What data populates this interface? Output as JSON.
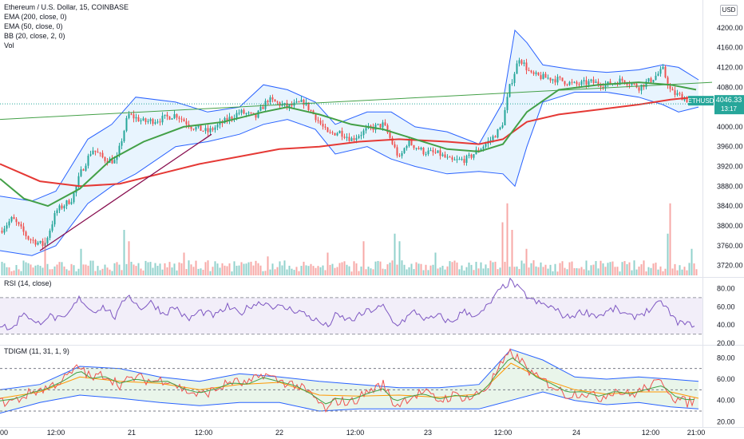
{
  "legend": {
    "title": "Ethereum / U.S. Dollar, 15, COINBASE",
    "ema200": "EMA (200, close, 0)",
    "ema50": "EMA (50, close, 0)",
    "bb": "BB (20, close, 2, 0)",
    "vol": "Vol"
  },
  "price_tag": {
    "symbol": "ETHUSD",
    "price": "4046.33",
    "countdown": "13:17",
    "color": "#26a69a"
  },
  "currency_button": "USD",
  "rsi_title": "RSI (14, close)",
  "tdigm_title": "TDIGM (11, 31, 1, 9)",
  "colors": {
    "up": "#26a69a",
    "down": "#ef5350",
    "ema200": "#e53935",
    "ema50": "#43a047",
    "bb": "#2962ff",
    "rsi": "#7e57c2",
    "trendline": "#43a047",
    "support": "#880e4f"
  },
  "chart_data": [
    {
      "type": "candlestick",
      "pane": "price",
      "ylim": [
        3700,
        4240
      ],
      "y_ticks": [
        "4200.00",
        "4160.00",
        "4120.00",
        "4080.00",
        "4040.00",
        "4000.00",
        "3960.00",
        "3920.00",
        "3880.00",
        "3840.00",
        "3800.00",
        "3760.00",
        "3720.00"
      ],
      "x_ticks": [
        "00",
        "12:00",
        "21",
        "12:00",
        "22",
        "12:00",
        "23",
        "12:00",
        "24",
        "12:00",
        "21:00"
      ],
      "close_path": [
        [
          0,
          3790
        ],
        [
          15,
          3815
        ],
        [
          35,
          3775
        ],
        [
          55,
          3760
        ],
        [
          70,
          3830
        ],
        [
          90,
          3855
        ],
        [
          100,
          3905
        ],
        [
          115,
          3955
        ],
        [
          130,
          3935
        ],
        [
          145,
          3930
        ],
        [
          160,
          4025
        ],
        [
          180,
          4010
        ],
        [
          200,
          4015
        ],
        [
          220,
          4025
        ],
        [
          240,
          4000
        ],
        [
          260,
          3990
        ],
        [
          280,
          4010
        ],
        [
          300,
          4030
        ],
        [
          320,
          4020
        ],
        [
          335,
          4055
        ],
        [
          360,
          4040
        ],
        [
          380,
          4050
        ],
        [
          395,
          4020
        ],
        [
          410,
          3985
        ],
        [
          425,
          3990
        ],
        [
          440,
          3975
        ],
        [
          460,
          3995
        ],
        [
          480,
          4005
        ],
        [
          500,
          3935
        ],
        [
          510,
          3970
        ],
        [
          530,
          3950
        ],
        [
          550,
          3945
        ],
        [
          565,
          3930
        ],
        [
          585,
          3935
        ],
        [
          600,
          3955
        ],
        [
          615,
          3975
        ],
        [
          628,
          4000
        ],
        [
          638,
          4080
        ],
        [
          650,
          4140
        ],
        [
          665,
          4105
        ],
        [
          680,
          4100
        ],
        [
          700,
          4095
        ],
        [
          720,
          4085
        ],
        [
          740,
          4090
        ],
        [
          760,
          4085
        ],
        [
          780,
          4095
        ],
        [
          800,
          4080
        ],
        [
          815,
          4095
        ],
        [
          830,
          4115
        ],
        [
          840,
          4070
        ],
        [
          855,
          4060
        ],
        [
          868,
          4046
        ]
      ],
      "ema200_path": [
        [
          0,
          3925
        ],
        [
          50,
          3890
        ],
        [
          100,
          3880
        ],
        [
          150,
          3885
        ],
        [
          200,
          3905
        ],
        [
          250,
          3925
        ],
        [
          300,
          3940
        ],
        [
          350,
          3955
        ],
        [
          400,
          3960
        ],
        [
          450,
          3970
        ],
        [
          500,
          3975
        ],
        [
          560,
          3970
        ],
        [
          600,
          3965
        ],
        [
          630,
          3975
        ],
        [
          660,
          4010
        ],
        [
          700,
          4025
        ],
        [
          750,
          4035
        ],
        [
          800,
          4045
        ],
        [
          840,
          4055
        ],
        [
          870,
          4060
        ]
      ],
      "ema50_path": [
        [
          0,
          3895
        ],
        [
          30,
          3855
        ],
        [
          60,
          3840
        ],
        [
          100,
          3875
        ],
        [
          140,
          3935
        ],
        [
          180,
          3970
        ],
        [
          230,
          4000
        ],
        [
          280,
          4010
        ],
        [
          330,
          4030
        ],
        [
          360,
          4040
        ],
        [
          400,
          4025
        ],
        [
          440,
          4005
        ],
        [
          480,
          3995
        ],
        [
          520,
          3975
        ],
        [
          560,
          3955
        ],
        [
          600,
          3950
        ],
        [
          630,
          3965
        ],
        [
          660,
          4030
        ],
        [
          700,
          4075
        ],
        [
          750,
          4085
        ],
        [
          800,
          4090
        ],
        [
          840,
          4085
        ],
        [
          872,
          4075
        ]
      ],
      "bb_upper_path": [
        [
          0,
          3860
        ],
        [
          40,
          3850
        ],
        [
          70,
          3870
        ],
        [
          110,
          3975
        ],
        [
          140,
          4005
        ],
        [
          170,
          4060
        ],
        [
          220,
          4050
        ],
        [
          260,
          4030
        ],
        [
          300,
          4040
        ],
        [
          330,
          4085
        ],
        [
          360,
          4075
        ],
        [
          395,
          4050
        ],
        [
          420,
          4005
        ],
        [
          460,
          4030
        ],
        [
          490,
          4030
        ],
        [
          520,
          4000
        ],
        [
          560,
          3990
        ],
        [
          600,
          3965
        ],
        [
          630,
          4050
        ],
        [
          645,
          4195
        ],
        [
          660,
          4170
        ],
        [
          680,
          4125
        ],
        [
          720,
          4115
        ],
        [
          760,
          4110
        ],
        [
          800,
          4115
        ],
        [
          830,
          4125
        ],
        [
          850,
          4120
        ],
        [
          875,
          4095
        ]
      ],
      "bb_lower_path": [
        [
          0,
          3750
        ],
        [
          40,
          3740
        ],
        [
          70,
          3760
        ],
        [
          110,
          3845
        ],
        [
          140,
          3880
        ],
        [
          170,
          3905
        ],
        [
          220,
          3960
        ],
        [
          260,
          3970
        ],
        [
          300,
          3985
        ],
        [
          330,
          4005
        ],
        [
          360,
          4015
        ],
        [
          395,
          3995
        ],
        [
          420,
          3945
        ],
        [
          460,
          3960
        ],
        [
          490,
          3935
        ],
        [
          520,
          3920
        ],
        [
          560,
          3905
        ],
        [
          600,
          3910
        ],
        [
          630,
          3905
        ],
        [
          645,
          3880
        ],
        [
          660,
          3960
        ],
        [
          680,
          4050
        ],
        [
          720,
          4070
        ],
        [
          760,
          4070
        ],
        [
          800,
          4060
        ],
        [
          830,
          4045
        ],
        [
          850,
          4030
        ],
        [
          875,
          4040
        ]
      ],
      "trendline": [
        [
          0,
          4015
        ],
        [
          892,
          4090
        ]
      ],
      "support_line": [
        [
          50,
          3750
        ],
        [
          265,
          3985
        ]
      ],
      "last_price_dotted": 4046.33
    },
    {
      "type": "bar",
      "pane": "volume",
      "note": "relative volume, 0-1 of pane height",
      "spikes": [
        [
          55,
          0.5
        ],
        [
          100,
          0.35
        ],
        [
          155,
          0.6
        ],
        [
          160,
          0.45
        ],
        [
          230,
          0.3
        ],
        [
          335,
          0.25
        ],
        [
          410,
          0.3
        ],
        [
          455,
          0.45
        ],
        [
          495,
          0.55
        ],
        [
          500,
          0.45
        ],
        [
          545,
          0.3
        ],
        [
          630,
          0.7
        ],
        [
          636,
          0.95
        ],
        [
          640,
          0.6
        ],
        [
          660,
          0.35
        ],
        [
          835,
          0.55
        ],
        [
          840,
          0.95
        ],
        [
          865,
          0.35
        ]
      ]
    },
    {
      "type": "line",
      "pane": "rsi",
      "ylim": [
        20,
        90
      ],
      "y_ticks": [
        "80.00",
        "60.00",
        "40.00",
        "20.00"
      ],
      "band": [
        30,
        70
      ],
      "path": [
        [
          0,
          40
        ],
        [
          15,
          35
        ],
        [
          30,
          55
        ],
        [
          45,
          40
        ],
        [
          60,
          50
        ],
        [
          80,
          45
        ],
        [
          100,
          70
        ],
        [
          115,
          55
        ],
        [
          130,
          60
        ],
        [
          145,
          48
        ],
        [
          160,
          75
        ],
        [
          175,
          58
        ],
        [
          190,
          65
        ],
        [
          205,
          52
        ],
        [
          220,
          60
        ],
        [
          235,
          45
        ],
        [
          250,
          55
        ],
        [
          270,
          50
        ],
        [
          285,
          60
        ],
        [
          300,
          52
        ],
        [
          315,
          62
        ],
        [
          330,
          65
        ],
        [
          345,
          60
        ],
        [
          360,
          58
        ],
        [
          375,
          55
        ],
        [
          390,
          48
        ],
        [
          410,
          38
        ],
        [
          420,
          50
        ],
        [
          440,
          45
        ],
        [
          460,
          55
        ],
        [
          480,
          60
        ],
        [
          495,
          40
        ],
        [
          505,
          45
        ],
        [
          520,
          55
        ],
        [
          535,
          45
        ],
        [
          550,
          50
        ],
        [
          565,
          42
        ],
        [
          580,
          55
        ],
        [
          600,
          50
        ],
        [
          615,
          65
        ],
        [
          628,
          80
        ],
        [
          640,
          88
        ],
        [
          655,
          75
        ],
        [
          670,
          65
        ],
        [
          690,
          60
        ],
        [
          710,
          48
        ],
        [
          730,
          55
        ],
        [
          750,
          50
        ],
        [
          770,
          58
        ],
        [
          790,
          48
        ],
        [
          810,
          55
        ],
        [
          830,
          65
        ],
        [
          845,
          45
        ],
        [
          860,
          40
        ],
        [
          872,
          42
        ]
      ]
    },
    {
      "type": "line",
      "pane": "tdigm",
      "ylim": [
        15,
        90
      ],
      "y_ticks": [
        "80.00",
        "60.00",
        "40.00",
        "20.00"
      ],
      "levels": [
        70,
        50,
        30
      ],
      "upper_band": [
        [
          0,
          50
        ],
        [
          50,
          55
        ],
        [
          100,
          72
        ],
        [
          150,
          70
        ],
        [
          200,
          62
        ],
        [
          250,
          58
        ],
        [
          300,
          65
        ],
        [
          350,
          62
        ],
        [
          400,
          58
        ],
        [
          450,
          55
        ],
        [
          500,
          52
        ],
        [
          550,
          52
        ],
        [
          600,
          55
        ],
        [
          640,
          88
        ],
        [
          680,
          78
        ],
        [
          720,
          62
        ],
        [
          760,
          60
        ],
        [
          800,
          62
        ],
        [
          840,
          60
        ],
        [
          875,
          58
        ]
      ],
      "lower_band": [
        [
          0,
          28
        ],
        [
          50,
          38
        ],
        [
          100,
          45
        ],
        [
          150,
          42
        ],
        [
          200,
          38
        ],
        [
          250,
          35
        ],
        [
          300,
          38
        ],
        [
          350,
          38
        ],
        [
          400,
          30
        ],
        [
          450,
          32
        ],
        [
          500,
          32
        ],
        [
          550,
          32
        ],
        [
          600,
          32
        ],
        [
          640,
          40
        ],
        [
          680,
          48
        ],
        [
          720,
          40
        ],
        [
          760,
          36
        ],
        [
          800,
          38
        ],
        [
          840,
          34
        ],
        [
          875,
          32
        ]
      ],
      "fast_line": [
        [
          0,
          38
        ],
        [
          20,
          40
        ],
        [
          40,
          48
        ],
        [
          60,
          52
        ],
        [
          80,
          60
        ],
        [
          100,
          72
        ],
        [
          115,
          60
        ],
        [
          130,
          65
        ],
        [
          150,
          55
        ],
        [
          170,
          62
        ],
        [
          190,
          58
        ],
        [
          210,
          60
        ],
        [
          230,
          50
        ],
        [
          250,
          45
        ],
        [
          270,
          50
        ],
        [
          290,
          58
        ],
        [
          310,
          55
        ],
        [
          330,
          65
        ],
        [
          350,
          58
        ],
        [
          370,
          55
        ],
        [
          390,
          45
        ],
        [
          410,
          30
        ],
        [
          420,
          40
        ],
        [
          440,
          38
        ],
        [
          460,
          48
        ],
        [
          480,
          55
        ],
        [
          495,
          35
        ],
        [
          510,
          42
        ],
        [
          530,
          48
        ],
        [
          550,
          40
        ],
        [
          570,
          45
        ],
        [
          590,
          42
        ],
        [
          610,
          52
        ],
        [
          625,
          70
        ],
        [
          640,
          85
        ],
        [
          655,
          75
        ],
        [
          670,
          62
        ],
        [
          690,
          55
        ],
        [
          710,
          45
        ],
        [
          730,
          48
        ],
        [
          750,
          42
        ],
        [
          770,
          50
        ],
        [
          790,
          45
        ],
        [
          810,
          52
        ],
        [
          830,
          58
        ],
        [
          845,
          42
        ],
        [
          860,
          38
        ],
        [
          872,
          40
        ]
      ],
      "slow_line": [
        [
          0,
          42
        ],
        [
          50,
          48
        ],
        [
          100,
          62
        ],
        [
          150,
          58
        ],
        [
          200,
          56
        ],
        [
          250,
          50
        ],
        [
          300,
          55
        ],
        [
          350,
          57
        ],
        [
          400,
          45
        ],
        [
          450,
          44
        ],
        [
          500,
          45
        ],
        [
          550,
          43
        ],
        [
          600,
          46
        ],
        [
          640,
          75
        ],
        [
          680,
          60
        ],
        [
          720,
          50
        ],
        [
          760,
          46
        ],
        [
          800,
          48
        ],
        [
          840,
          48
        ],
        [
          875,
          42
        ]
      ]
    }
  ]
}
